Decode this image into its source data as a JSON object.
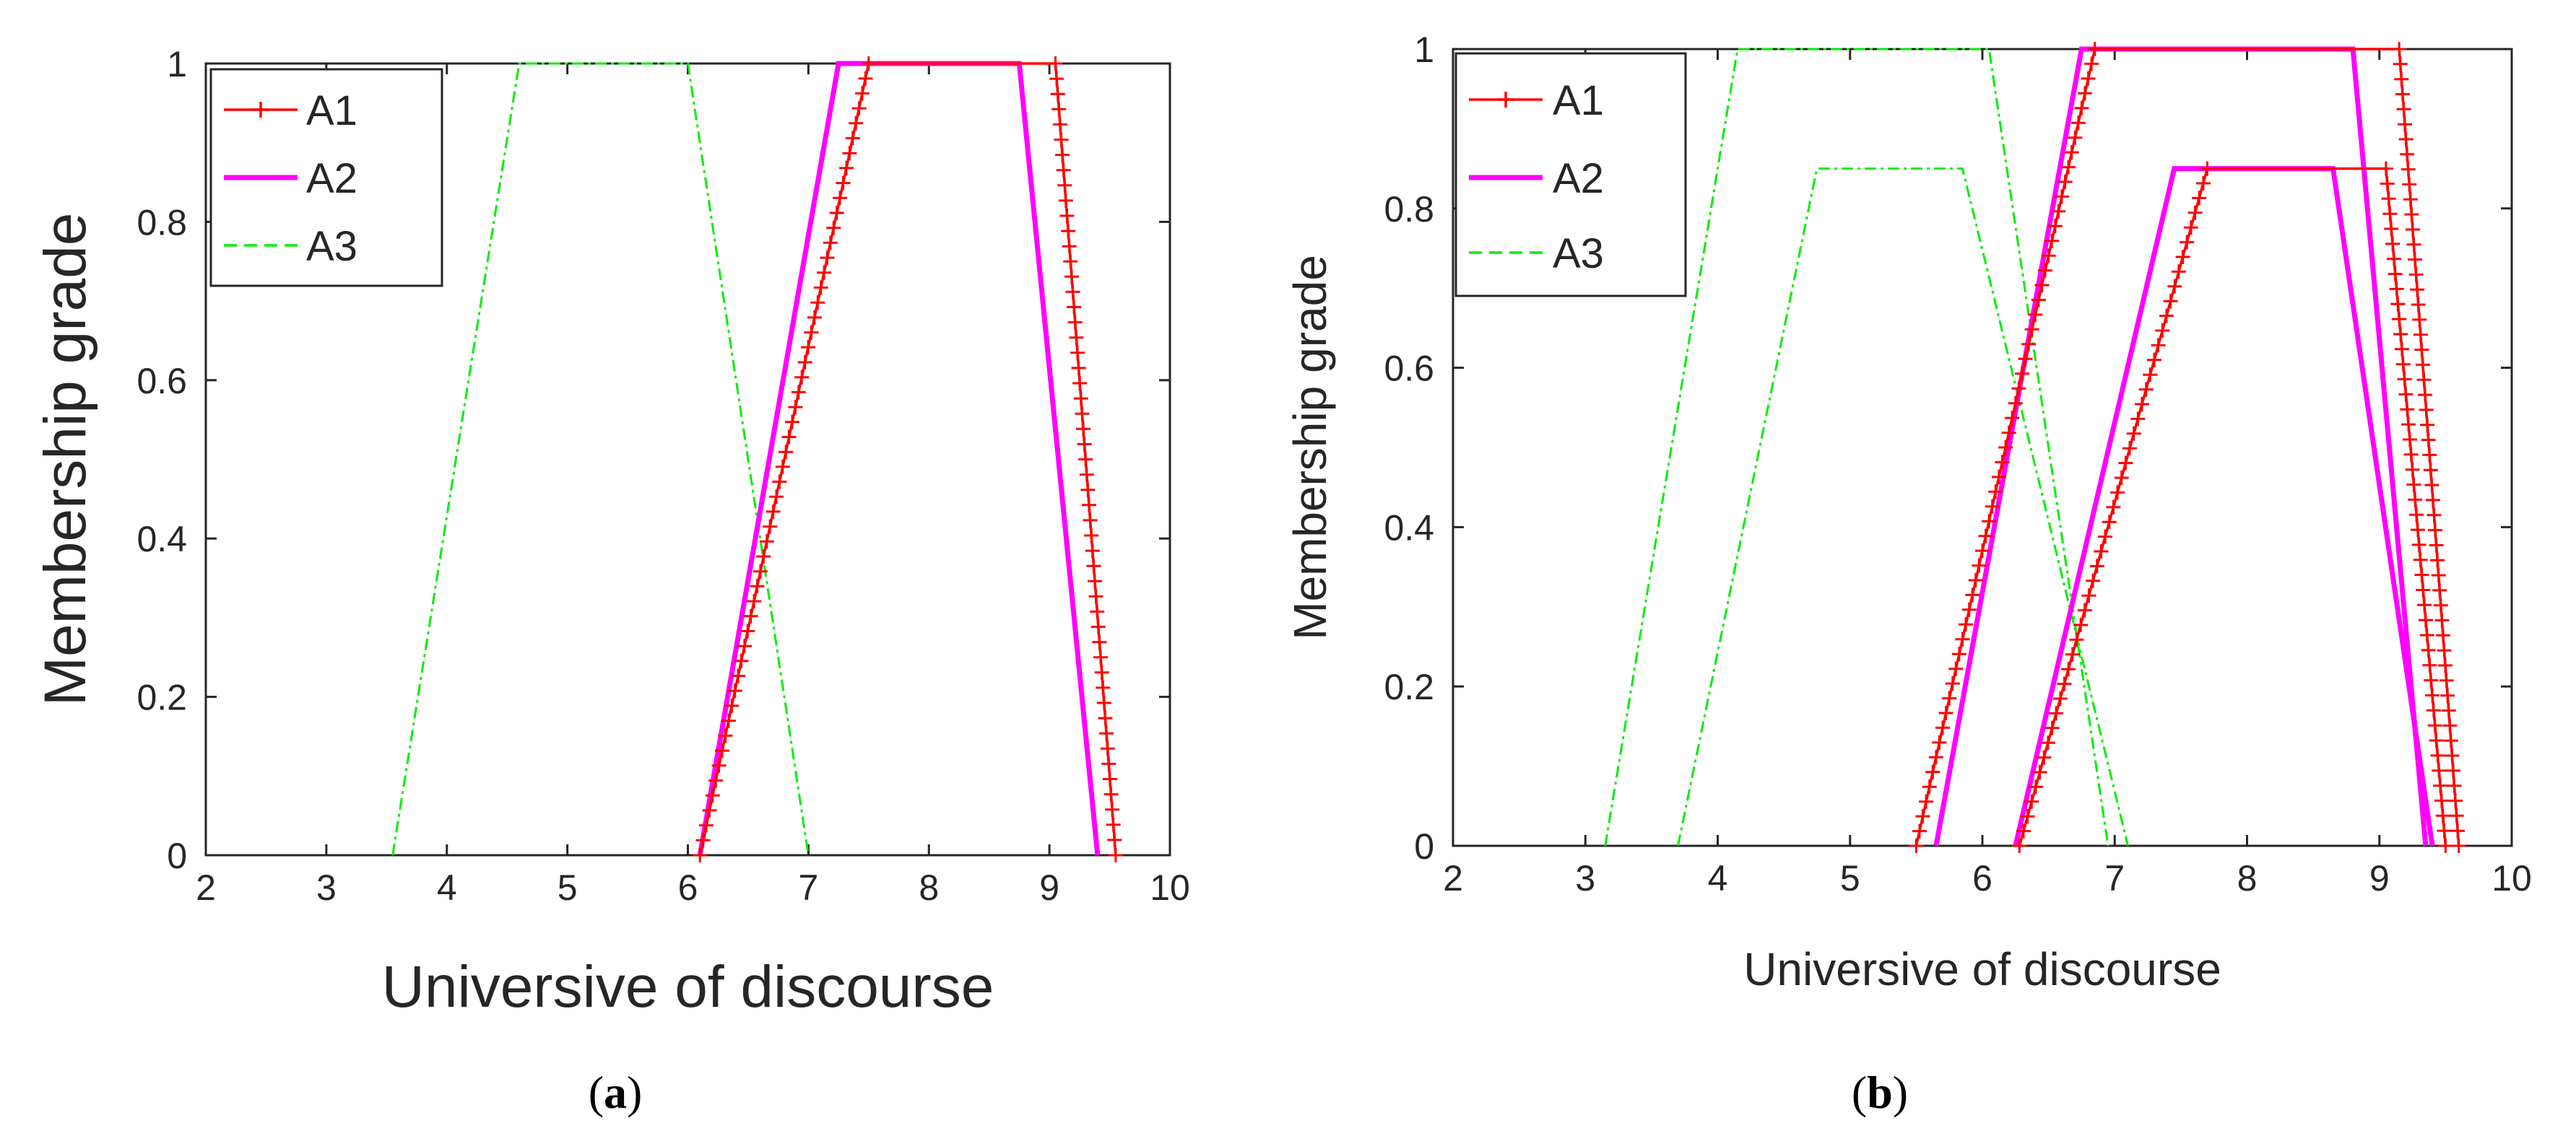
{
  "chart_data": [
    {
      "id": "a",
      "type": "line",
      "panel_label": "a",
      "title": "",
      "xlabel": "Universive of discourse",
      "ylabel": "Membership grade",
      "xlim": [
        2,
        10
      ],
      "ylim": [
        0,
        1
      ],
      "xticks": [
        2,
        3,
        4,
        5,
        6,
        7,
        8,
        9,
        10
      ],
      "yticks": [
        0,
        0.2,
        0.4,
        0.6,
        0.8,
        1
      ],
      "ytick_labels": [
        "0",
        "0.2",
        "0.4",
        "0.6",
        "0.8",
        "1"
      ],
      "grid": false,
      "legend_position": "top-left",
      "series": [
        {
          "name": "A1",
          "color": "#ff0000",
          "style": "solid-plus",
          "x": [
            6.1,
            7.5,
            9.05,
            9.55
          ],
          "y": [
            0,
            1,
            1,
            0
          ]
        },
        {
          "name": "A2",
          "color": "#ff00ff",
          "style": "solid-thick",
          "x": [
            6.1,
            7.25,
            8.75,
            9.4
          ],
          "y": [
            0,
            1,
            1,
            0
          ]
        },
        {
          "name": "A3",
          "color": "#00ee00",
          "style": "dashdot",
          "x": [
            3.55,
            4.6,
            6.0,
            7.0
          ],
          "y": [
            0,
            1,
            1,
            0
          ]
        }
      ]
    },
    {
      "id": "b",
      "type": "line",
      "panel_label": "b",
      "title": "",
      "xlabel": "Universive of discourse",
      "ylabel": "Membership grade",
      "xlim": [
        2,
        10
      ],
      "ylim": [
        0,
        1
      ],
      "xticks": [
        2,
        3,
        4,
        5,
        6,
        7,
        8,
        9,
        10
      ],
      "yticks": [
        0,
        0.2,
        0.4,
        0.6,
        0.8,
        1
      ],
      "ytick_labels": [
        "0",
        "0.2",
        "0.4",
        "0.6",
        "0.8",
        "1"
      ],
      "grid": false,
      "legend_position": "top-left",
      "series": [
        {
          "name": "A1",
          "color": "#ff0000",
          "style": "solid-plus",
          "x": [
            5.5,
            6.85,
            9.15,
            9.6
          ],
          "y": [
            0,
            1,
            1,
            0
          ]
        },
        {
          "name": "A1",
          "color": "#ff0000",
          "style": "solid-plus",
          "legend": false,
          "x": [
            6.28,
            7.7,
            9.05,
            9.5
          ],
          "y": [
            0,
            0.85,
            0.85,
            0
          ]
        },
        {
          "name": "A2",
          "color": "#ff00ff",
          "style": "solid-thick",
          "x": [
            5.65,
            6.75,
            8.8,
            9.35
          ],
          "y": [
            0,
            1,
            1,
            0
          ]
        },
        {
          "name": "A2",
          "color": "#ff00ff",
          "style": "solid-thick",
          "legend": false,
          "x": [
            6.25,
            7.45,
            8.65,
            9.4
          ],
          "y": [
            0,
            0.85,
            0.85,
            0
          ]
        },
        {
          "name": "A3",
          "color": "#00ee00",
          "style": "dashdot",
          "x": [
            3.15,
            4.15,
            6.05,
            6.95
          ],
          "y": [
            0,
            1,
            1,
            0
          ]
        },
        {
          "name": "A3",
          "color": "#00ee00",
          "style": "dashdot",
          "legend": false,
          "x": [
            3.7,
            4.75,
            5.85,
            7.1
          ],
          "y": [
            0,
            0.85,
            0.85,
            0
          ]
        }
      ]
    }
  ]
}
